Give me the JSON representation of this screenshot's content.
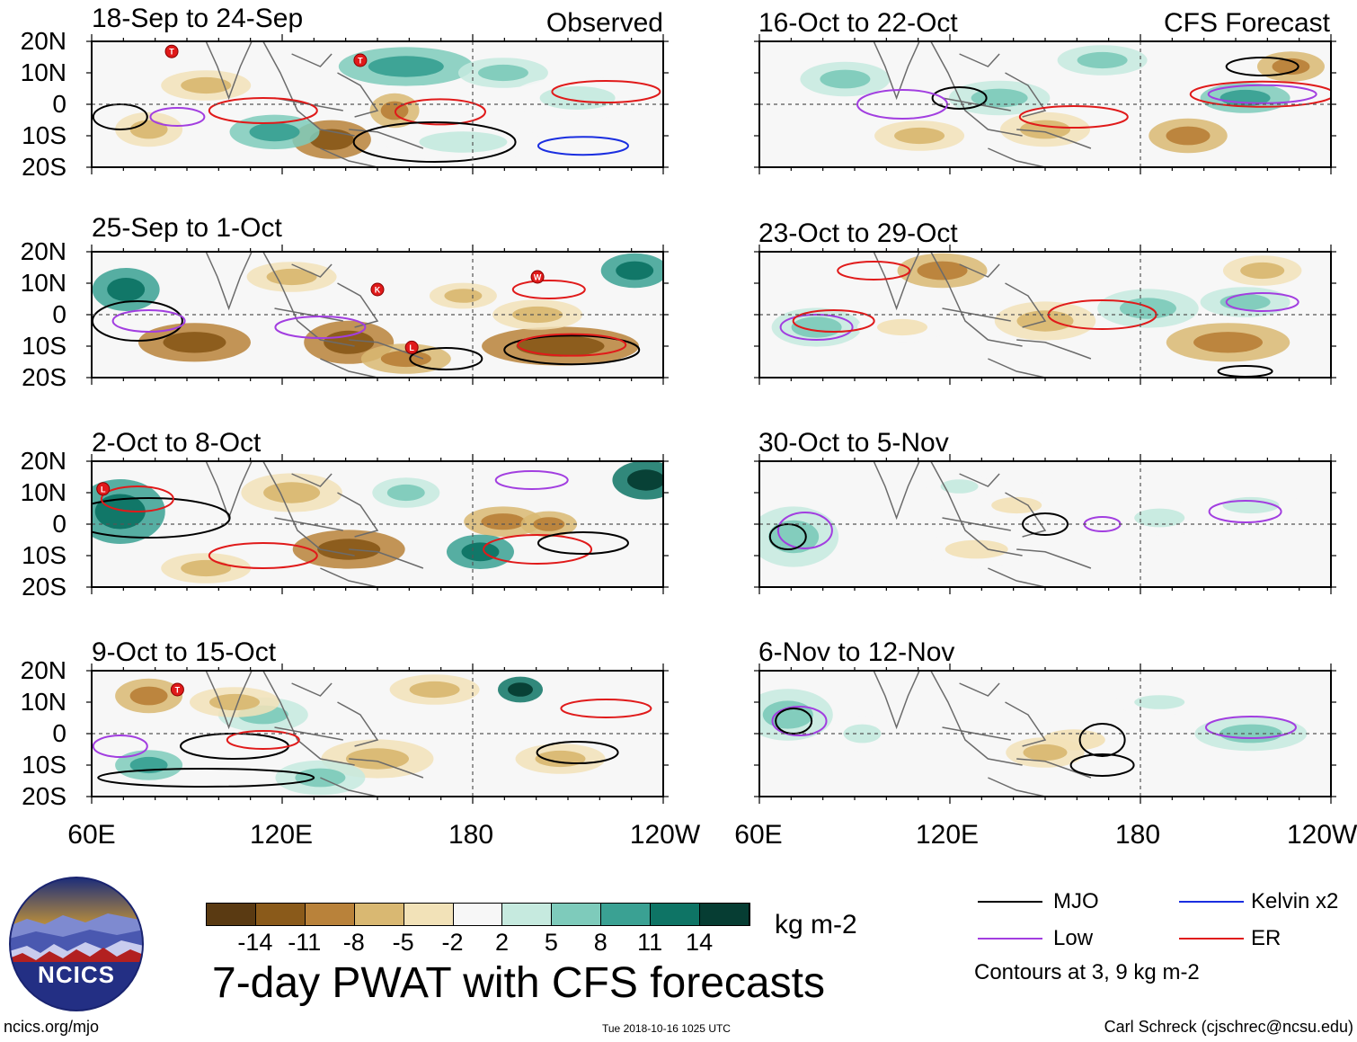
{
  "headers": {
    "observed": "Observed",
    "forecast": "CFS Forecast"
  },
  "panels": [
    {
      "label": "18-Sep to 24-Sep",
      "group": "observed"
    },
    {
      "label": "25-Sep to 1-Oct",
      "group": "observed"
    },
    {
      "label": "2-Oct to 8-Oct",
      "group": "observed"
    },
    {
      "label": "9-Oct to 15-Oct",
      "group": "observed"
    },
    {
      "label": "16-Oct to 22-Oct",
      "group": "forecast"
    },
    {
      "label": "23-Oct to 29-Oct",
      "group": "forecast"
    },
    {
      "label": "30-Oct to 5-Nov",
      "group": "forecast"
    },
    {
      "label": "6-Nov to 12-Nov",
      "group": "forecast"
    }
  ],
  "lat_labels": [
    "20N",
    "10N",
    "0",
    "10S",
    "20S"
  ],
  "lon_labels": [
    "60E",
    "120E",
    "180",
    "120W"
  ],
  "colorbar": {
    "ticks": [
      "-14",
      "-11",
      "-8",
      "-5",
      "-2",
      "2",
      "5",
      "8",
      "11",
      "14"
    ],
    "colors": [
      "#5a3a12",
      "#8a5a1a",
      "#b9823a",
      "#d9b872",
      "#f2e2b8",
      "#f7f7f7",
      "#c6eadf",
      "#7ecbbb",
      "#3aa193",
      "#0e7465",
      "#063d33"
    ],
    "units": "kg m-2"
  },
  "legend": {
    "items": [
      {
        "label": "MJO",
        "color": "#000000"
      },
      {
        "label": "Kelvin x2",
        "color": "#1a2ee0"
      },
      {
        "label": "Low",
        "color": "#a23ee0"
      },
      {
        "label": "ER",
        "color": "#e01a1a"
      }
    ],
    "note": "Contours at 3, 9 kg m-2"
  },
  "storm_markers": [
    "T",
    "T",
    "K",
    "W",
    "L",
    "L",
    "T"
  ],
  "title": "7-day PWAT with CFS forecasts",
  "logo_text": "NCICS",
  "footer": {
    "left": "ncics.org/mjo",
    "center": "Tue 2018-10-16 1025 UTC",
    "right": "Carl Schreck (cjschrec@ncsu.edu)"
  }
}
